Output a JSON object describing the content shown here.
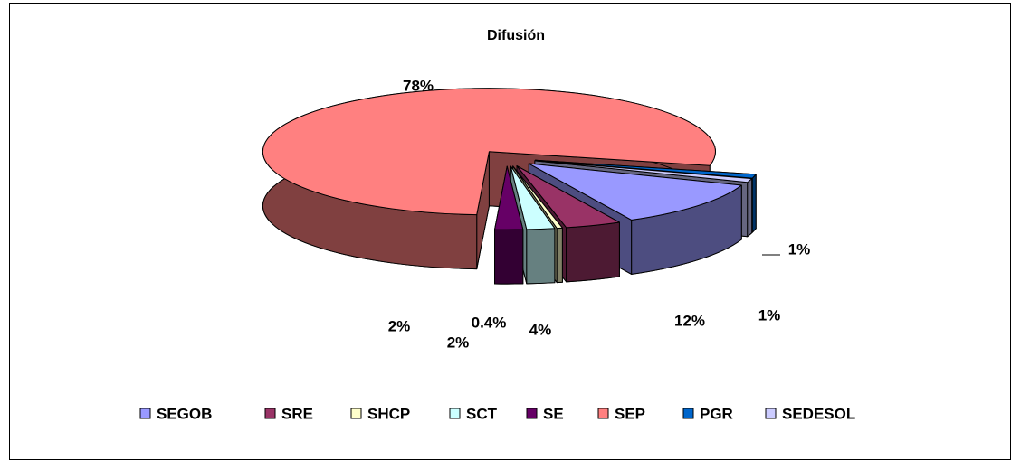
{
  "chart_data": {
    "type": "pie",
    "title": "Difusión",
    "categories": [
      "SEGOB",
      "SRE",
      "SHCP",
      "SCT",
      "SE",
      "SEP",
      "PGR",
      "SEDESOL"
    ],
    "values": [
      12,
      4,
      0.4,
      2,
      2,
      78,
      1,
      1
    ],
    "value_labels": [
      "12%",
      "4%",
      "0.4%",
      "2%",
      "2%",
      "78%",
      "1%",
      "1%"
    ],
    "colors": [
      "#9999ff",
      "#993366",
      "#ffffcc",
      "#ccffff",
      "#660066",
      "#ff8080",
      "#0066cc",
      "#ccccff"
    ],
    "legend": "bottom"
  }
}
